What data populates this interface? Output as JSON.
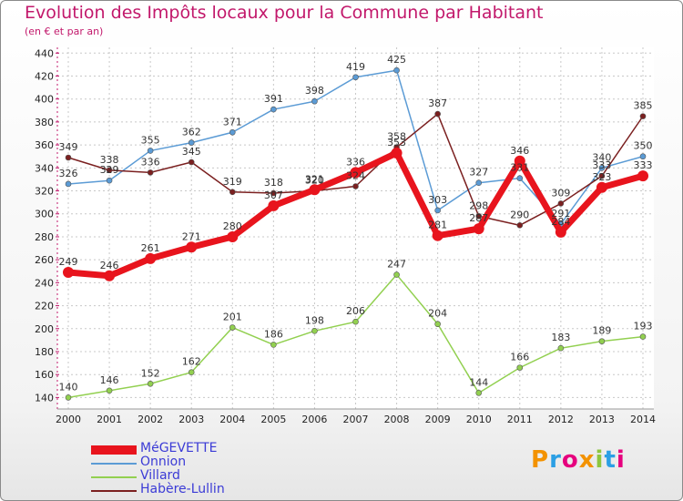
{
  "title": "Evolution des Impôts locaux pour la Commune par Habitant",
  "subtitle": "(en € et par an)",
  "logo": {
    "text": "Proxiti",
    "colors": [
      "#f39200",
      "#2b9fe4",
      "#e6007e",
      "#f39200",
      "#8dc63f",
      "#2b9fe4",
      "#e6007e"
    ]
  },
  "chart_data": {
    "type": "line",
    "x": [
      "2000",
      "2001",
      "2002",
      "2003",
      "2004",
      "2005",
      "2006",
      "2007",
      "2008",
      "2009",
      "2010",
      "2011",
      "2012",
      "2013",
      "2014"
    ],
    "ylim": [
      130,
      445
    ],
    "yticks": [
      140,
      160,
      180,
      200,
      220,
      240,
      260,
      280,
      300,
      320,
      340,
      360,
      380,
      400,
      420,
      440
    ],
    "grid": true,
    "legend": "bottom-left",
    "series": [
      {
        "name": "MéGEVETTE",
        "color": "#e8141d",
        "values": [
          249,
          246,
          261,
          271,
          280,
          307,
          321,
          336,
          353,
          281,
          287,
          346,
          284,
          323,
          333
        ]
      },
      {
        "name": "Onnion",
        "color": "#5b9bd5",
        "values": [
          326,
          329,
          355,
          362,
          371,
          391,
          398,
          419,
          425,
          303,
          327,
          331,
          291,
          340,
          350
        ]
      },
      {
        "name": "Villard",
        "color": "#92d050",
        "values": [
          140,
          146,
          152,
          162,
          201,
          186,
          198,
          206,
          247,
          204,
          144,
          166,
          183,
          189,
          193
        ]
      },
      {
        "name": "Habère-Lullin",
        "color": "#7b2020",
        "values": [
          349,
          338,
          336,
          345,
          319,
          318,
          320,
          324,
          358,
          387,
          298,
          290,
          309,
          333,
          385
        ]
      }
    ]
  }
}
